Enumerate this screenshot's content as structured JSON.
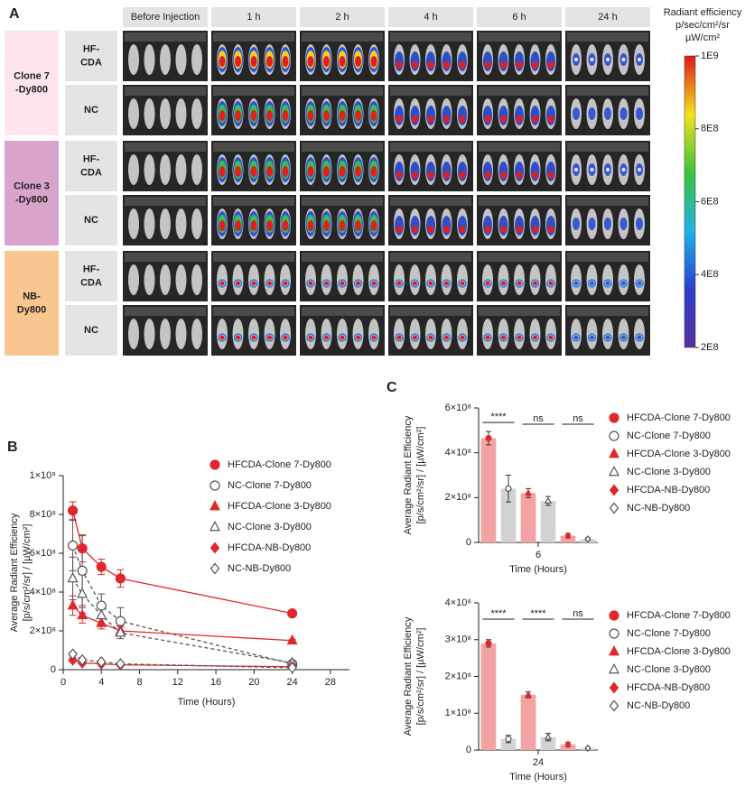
{
  "panels": [
    "A",
    "B",
    "C"
  ],
  "imaging": {
    "columns": [
      "Before Injection",
      "1 h",
      "2 h",
      "4 h",
      "6 h",
      "24 h"
    ],
    "groups": [
      {
        "label": [
          "Clone 7",
          "-Dy800"
        ],
        "color": "#fde4ee",
        "rows": [
          [
            "HF-",
            "CDA"
          ],
          [
            "NC"
          ]
        ]
      },
      {
        "label": [
          "Clone 3",
          "-Dy800"
        ],
        "color": "#d9a3cc",
        "rows": [
          [
            "HF-",
            "CDA"
          ],
          [
            "NC"
          ]
        ]
      },
      {
        "label": [
          "NB-",
          "Dy800"
        ],
        "color": "#f9c690",
        "rows": [
          [
            "HF-",
            "CDA"
          ],
          [
            "NC"
          ]
        ]
      }
    ],
    "colorbar": {
      "title": [
        "Radiant efficiency",
        "p/sec/cm²/sr",
        "µW/cm²"
      ],
      "lim": [
        200000000,
        1000000000
      ],
      "ticks": [
        {
          "value": 1000000000,
          "label": "1E9"
        },
        {
          "value": 800000000,
          "label": "8E8"
        },
        {
          "value": 600000000,
          "label": "6E8"
        },
        {
          "value": 400000000,
          "label": "4E8"
        },
        {
          "value": 200000000,
          "label": "2E8"
        }
      ]
    }
  },
  "chart_data": [
    {
      "type": "line",
      "xlabel": "Time (Hours)",
      "ylabel": [
        "Average Radiant Efficiency",
        "[p/s/cm²/sr] / [µW/cm²]"
      ],
      "x": [
        1,
        2,
        4,
        6,
        24
      ],
      "xlim": [
        0,
        30
      ],
      "xticks": [
        0,
        4,
        8,
        12,
        16,
        20,
        24,
        28
      ],
      "ylim": [
        0,
        1000000000
      ],
      "yticks": [
        0,
        {
          "value": 200000000,
          "label": "2×10⁸"
        },
        {
          "value": 400000000,
          "label": "4×10⁸"
        },
        {
          "value": 600000000,
          "label": "6×10⁸"
        },
        {
          "value": 800000000,
          "label": "8×10⁸"
        },
        {
          "value": 1000000000,
          "label": "1×10⁹"
        }
      ],
      "series": [
        {
          "name": "HFCDA-Clone 7-Dy800",
          "color": "#e0282c",
          "marker": "circle",
          "filled": true,
          "dashed": false,
          "values": [
            820000000,
            625000000,
            530000000,
            470000000,
            290000000
          ],
          "errors": [
            45000000,
            70000000,
            40000000,
            45000000,
            10000000
          ]
        },
        {
          "name": "NC-Clone 7-Dy800",
          "color": "#555555",
          "marker": "circle",
          "filled": false,
          "dashed": true,
          "values": [
            640000000,
            510000000,
            330000000,
            250000000,
            30000000
          ],
          "errors": [
            130000000,
            180000000,
            60000000,
            70000000,
            10000000
          ]
        },
        {
          "name": "HFCDA-Clone 3-Dy800",
          "color": "#e0282c",
          "marker": "triangle",
          "filled": true,
          "dashed": false,
          "values": [
            330000000,
            280000000,
            240000000,
            200000000,
            150000000
          ],
          "errors": [
            50000000,
            40000000,
            30000000,
            25000000,
            5000000
          ]
        },
        {
          "name": "NC-Clone 3-Dy800",
          "color": "#555555",
          "marker": "triangle",
          "filled": false,
          "dashed": true,
          "values": [
            470000000,
            390000000,
            280000000,
            190000000,
            35000000
          ],
          "errors": [
            110000000,
            100000000,
            40000000,
            30000000,
            10000000
          ]
        },
        {
          "name": "HFCDA-NB-Dy800",
          "color": "#e0282c",
          "marker": "diamond",
          "filled": true,
          "dashed": false,
          "values": [
            50000000,
            35000000,
            30000000,
            25000000,
            15000000
          ],
          "errors": [
            10000000,
            8000000,
            6000000,
            5000000,
            4000000
          ]
        },
        {
          "name": "NC-NB-Dy800",
          "color": "#555555",
          "marker": "diamond",
          "filled": false,
          "dashed": true,
          "values": [
            80000000,
            50000000,
            40000000,
            30000000,
            10000000
          ],
          "errors": [
            10000000,
            8000000,
            6000000,
            5000000,
            4000000
          ]
        }
      ]
    },
    {
      "type": "bar",
      "xlabel": "Time (Hours)",
      "ylabel": [
        "Average Radiant Efficiency",
        "[p/s/cm²/sr] / [µW/cm²]"
      ],
      "categories": [
        "6"
      ],
      "ylim": [
        0,
        600000000
      ],
      "yticks": [
        0,
        {
          "value": 200000000,
          "label": "2×10⁸"
        },
        {
          "value": 400000000,
          "label": "4×10⁸"
        },
        {
          "value": 600000000,
          "label": "6×10⁸"
        }
      ],
      "series": [
        {
          "name": "HFCDA-Clone 7-Dy800",
          "color": "#e0282c",
          "bar_color": "#f4a3a3",
          "marker": "circle",
          "filled": true,
          "values": [
            465000000
          ],
          "errors": [
            30000000
          ]
        },
        {
          "name": "NC-Clone 7-Dy800",
          "color": "#555555",
          "bar_color": "#d3d3d3",
          "marker": "circle",
          "filled": false,
          "values": [
            240000000
          ],
          "errors": [
            60000000
          ]
        },
        {
          "name": "HFCDA-Clone 3-Dy800",
          "color": "#e0282c",
          "bar_color": "#f4a3a3",
          "marker": "triangle",
          "filled": true,
          "values": [
            220000000
          ],
          "errors": [
            20000000
          ]
        },
        {
          "name": "NC-Clone 3-Dy800",
          "color": "#555555",
          "bar_color": "#d3d3d3",
          "marker": "triangle",
          "filled": false,
          "values": [
            185000000
          ],
          "errors": [
            20000000
          ]
        },
        {
          "name": "HFCDA-NB-Dy800",
          "color": "#e0282c",
          "bar_color": "#f4a3a3",
          "marker": "diamond",
          "filled": true,
          "values": [
            30000000
          ],
          "errors": [
            10000000
          ]
        },
        {
          "name": "NC-NB-Dy800",
          "color": "#555555",
          "bar_color": "#d3d3d3",
          "marker": "diamond",
          "filled": false,
          "values": [
            15000000
          ],
          "errors": [
            5000000
          ]
        }
      ],
      "annotations": [
        {
          "text": "****",
          "pair": [
            0,
            1
          ]
        },
        {
          "text": "ns",
          "pair": [
            2,
            3
          ]
        },
        {
          "text": "ns",
          "pair": [
            4,
            5
          ]
        }
      ]
    },
    {
      "type": "bar",
      "xlabel": "Time (Hours)",
      "ylabel": [
        "Average Radiant Efficiency",
        "[p/s/cm²/sr] / [µW/cm²]"
      ],
      "categories": [
        "24"
      ],
      "ylim": [
        0,
        400000000
      ],
      "yticks": [
        0,
        {
          "value": 100000000,
          "label": "1×10⁸"
        },
        {
          "value": 200000000,
          "label": "2×10⁸"
        },
        {
          "value": 300000000,
          "label": "3×10⁸"
        },
        {
          "value": 400000000,
          "label": "4×10⁸"
        }
      ],
      "series": [
        {
          "name": "HFCDA-Clone 7-Dy800",
          "color": "#e0282c",
          "bar_color": "#f4a3a3",
          "marker": "circle",
          "filled": true,
          "values": [
            290000000
          ],
          "errors": [
            10000000
          ]
        },
        {
          "name": "NC-Clone 7-Dy800",
          "color": "#555555",
          "bar_color": "#d3d3d3",
          "marker": "circle",
          "filled": false,
          "values": [
            30000000
          ],
          "errors": [
            10000000
          ]
        },
        {
          "name": "HFCDA-Clone 3-Dy800",
          "color": "#e0282c",
          "bar_color": "#f4a3a3",
          "marker": "triangle",
          "filled": true,
          "values": [
            150000000
          ],
          "errors": [
            8000000
          ]
        },
        {
          "name": "NC-Clone 3-Dy800",
          "color": "#555555",
          "bar_color": "#d3d3d3",
          "marker": "triangle",
          "filled": false,
          "values": [
            35000000
          ],
          "errors": [
            10000000
          ]
        },
        {
          "name": "HFCDA-NB-Dy800",
          "color": "#e0282c",
          "bar_color": "#f4a3a3",
          "marker": "diamond",
          "filled": true,
          "values": [
            15000000
          ],
          "errors": [
            6000000
          ]
        },
        {
          "name": "NC-NB-Dy800",
          "color": "#555555",
          "bar_color": "#d3d3d3",
          "marker": "diamond",
          "filled": false,
          "values": [
            5000000
          ],
          "errors": [
            2000000
          ]
        }
      ],
      "annotations": [
        {
          "text": "****",
          "pair": [
            0,
            1
          ]
        },
        {
          "text": "****",
          "pair": [
            2,
            3
          ]
        },
        {
          "text": "ns",
          "pair": [
            4,
            5
          ]
        }
      ]
    }
  ]
}
